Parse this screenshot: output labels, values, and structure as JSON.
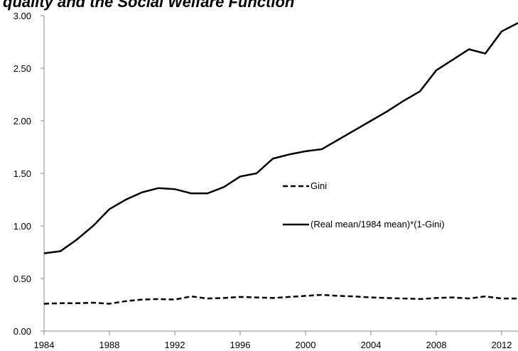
{
  "chart_data": {
    "type": "line",
    "title": "quality and the Social Welfare Function",
    "x": [
      1984,
      1985,
      1986,
      1987,
      1988,
      1989,
      1990,
      1991,
      1992,
      1993,
      1994,
      1995,
      1996,
      1997,
      1998,
      1999,
      2000,
      2001,
      2002,
      2003,
      2004,
      2005,
      2006,
      2007,
      2008,
      2009,
      2010,
      2011,
      2012,
      2013
    ],
    "series": [
      {
        "name": "Gini",
        "color": "#000000",
        "dash": true,
        "values": [
          0.26,
          0.265,
          0.265,
          0.27,
          0.26,
          0.285,
          0.3,
          0.305,
          0.3,
          0.33,
          0.31,
          0.315,
          0.325,
          0.32,
          0.315,
          0.325,
          0.335,
          0.345,
          0.335,
          0.33,
          0.32,
          0.315,
          0.31,
          0.305,
          0.315,
          0.32,
          0.31,
          0.33,
          0.31,
          0.31
        ]
      },
      {
        "name": "(Real mean/1984 mean)*(1-Gini)",
        "color": "#000000",
        "dash": false,
        "values": [
          0.74,
          0.76,
          0.87,
          1.0,
          1.16,
          1.25,
          1.32,
          1.36,
          1.35,
          1.31,
          1.31,
          1.37,
          1.47,
          1.5,
          1.64,
          1.68,
          1.71,
          1.73,
          1.82,
          1.91,
          2.0,
          2.09,
          2.19,
          2.28,
          2.48,
          2.58,
          2.68,
          2.64,
          2.85,
          2.93
        ]
      }
    ],
    "xlim": [
      1984,
      2013
    ],
    "xticks": [
      1984,
      1988,
      1992,
      1996,
      2000,
      2004,
      2008,
      2012
    ],
    "ylim": [
      0,
      3
    ],
    "yticks": [
      {
        "value": 0,
        "label": "0.00"
      },
      {
        "value": 0.5,
        "label": "0.50"
      },
      {
        "value": 1,
        "label": "1.00"
      },
      {
        "value": 1.5,
        "label": "1.50"
      },
      {
        "value": 2,
        "label": "2.00"
      },
      {
        "value": 2.5,
        "label": "2.50"
      },
      {
        "value": 3,
        "label": "3.00"
      }
    ]
  }
}
